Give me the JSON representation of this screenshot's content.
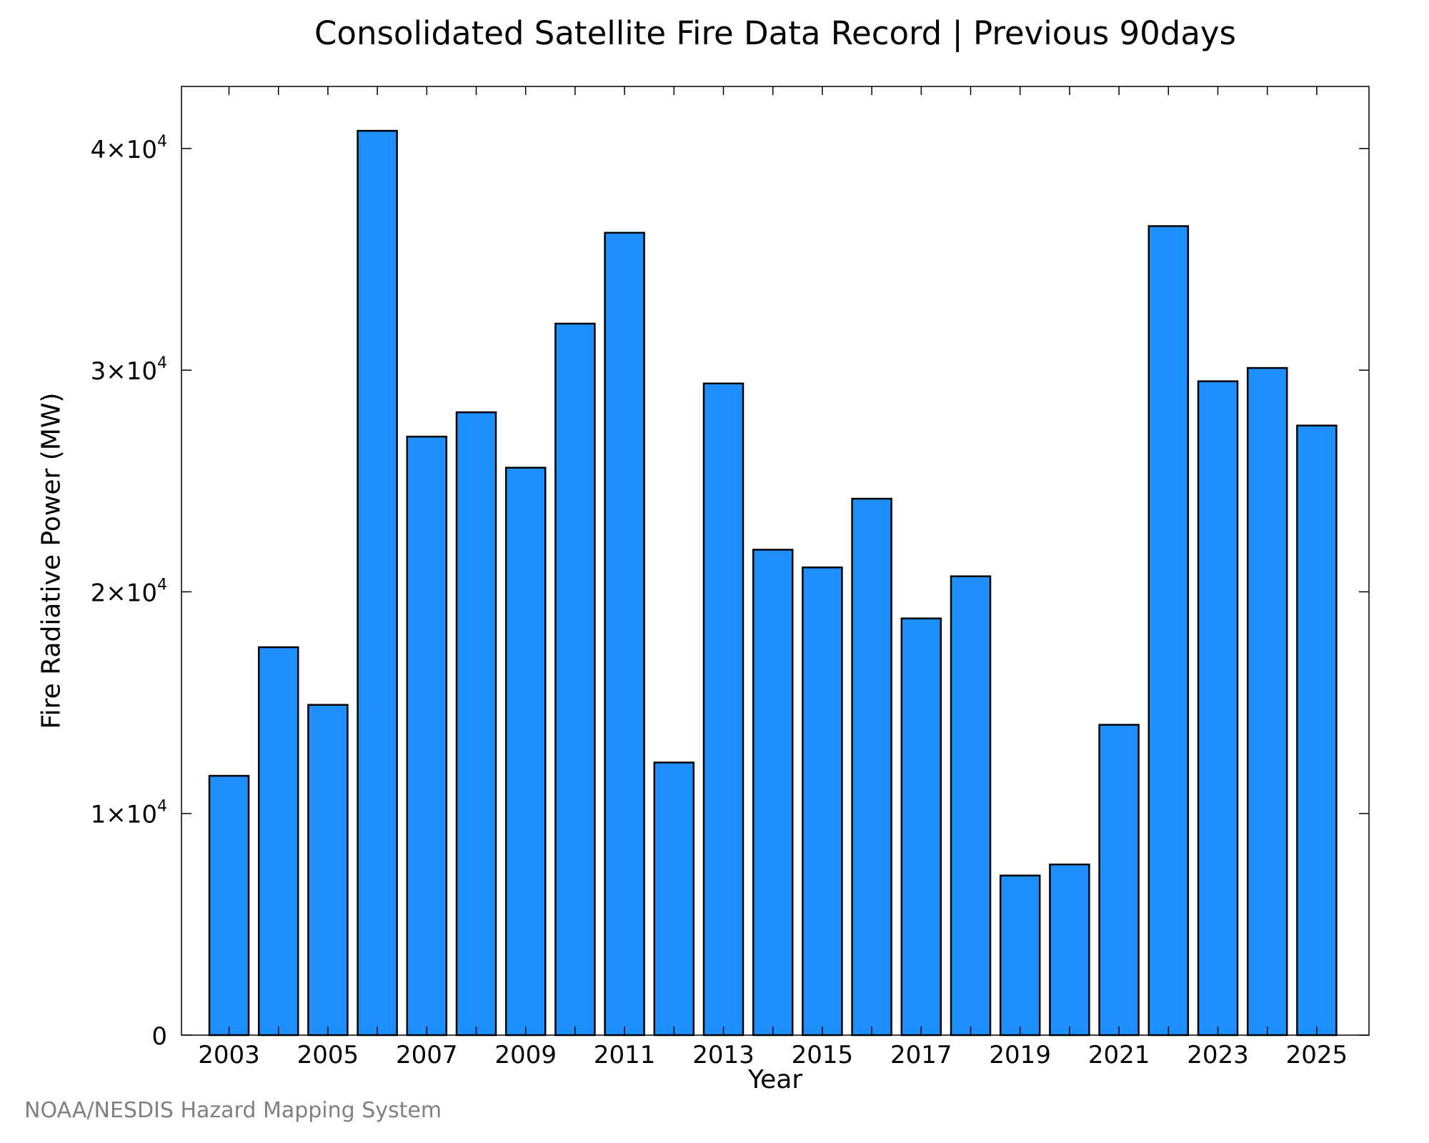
{
  "chart_data": {
    "type": "bar",
    "title": "Consolidated Satellite Fire Data Record | Previous 90days",
    "xlabel": "Year",
    "ylabel": "Fire Radiative Power (MW)",
    "categories": [
      "2003",
      "2004",
      "2005",
      "2006",
      "2007",
      "2008",
      "2009",
      "2010",
      "2011",
      "2012",
      "2013",
      "2014",
      "2015",
      "2016",
      "2017",
      "2018",
      "2019",
      "2020",
      "2021",
      "2022",
      "2023",
      "2024",
      "2025"
    ],
    "values": [
      11700,
      17500,
      14900,
      40800,
      27000,
      28100,
      25600,
      32100,
      36200,
      12300,
      29400,
      21900,
      21100,
      24200,
      18800,
      20700,
      7200,
      7700,
      14000,
      36500,
      29500,
      30100,
      27500
    ],
    "ylim": [
      0,
      42800
    ],
    "x_tick_labels": [
      "2003",
      "2005",
      "2007",
      "2009",
      "2011",
      "2013",
      "2015",
      "2017",
      "2019",
      "2021",
      "2023",
      "2025"
    ],
    "y_ticks": [
      {
        "value": 0,
        "label": "0"
      },
      {
        "value": 10000,
        "mantissa": "1×10",
        "exp": "4"
      },
      {
        "value": 20000,
        "mantissa": "2×10",
        "exp": "4"
      },
      {
        "value": 30000,
        "mantissa": "3×10",
        "exp": "4"
      },
      {
        "value": 40000,
        "mantissa": "4×10",
        "exp": "4"
      }
    ],
    "grid": false,
    "bar_color": "#1e8fff",
    "bar_edge_color": "#000000"
  },
  "credit": "NOAA/NESDIS Hazard Mapping System"
}
